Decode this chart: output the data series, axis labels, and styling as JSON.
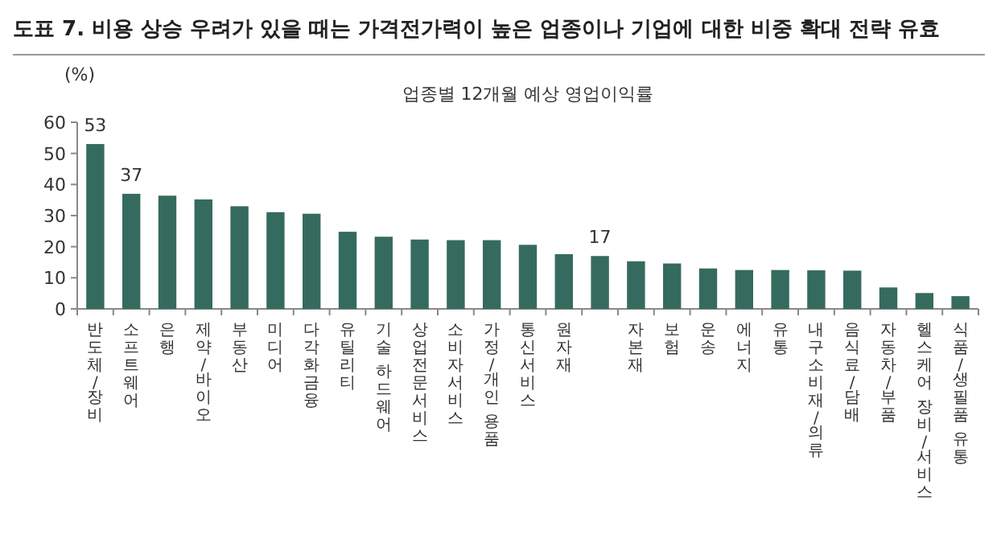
{
  "chart_data": {
    "type": "bar",
    "title": "도표 7. 비용 상승 우려가 있을 때는 가격전가력이 높은 업종이나 기업에 대한 비중 확대 전략 유효",
    "subtitle": "업종별 12개월 예상 영업이익률",
    "ylabel": "(%)",
    "categories": [
      "반도체/장비",
      "소프트웨어",
      "은행",
      "제약/바이오",
      "부동산",
      "미디어",
      "다각화금융",
      "유틸리티",
      "기술 하드웨어",
      "상업전문서비스",
      "소비자서비스",
      "가정/개인 용품",
      "통신서비스",
      "원자재",
      null,
      "자본재",
      "보험",
      "운송",
      "에너지",
      "유통",
      "내구소비재/의류",
      "음식료/담배",
      "자동차/부품",
      "헬스케어 장비/서비스",
      "식품/생필품 유통"
    ],
    "values": [
      53,
      37,
      36.4,
      35.2,
      33,
      31.1,
      30.6,
      24.8,
      23.2,
      22.3,
      22.1,
      22.1,
      20.6,
      17.6,
      17,
      15.3,
      14.6,
      13,
      12.5,
      12.5,
      12.4,
      12.3,
      6.9,
      5.1,
      4.1
    ],
    "value_labels": [
      "53",
      "37",
      null,
      null,
      null,
      null,
      null,
      null,
      null,
      null,
      null,
      null,
      null,
      null,
      "17",
      null,
      null,
      null,
      null,
      null,
      null,
      null,
      null,
      null,
      null
    ],
    "color": "#356b5e",
    "ylim": [
      0,
      60
    ],
    "yticks": [
      0,
      10,
      20,
      30,
      40,
      50,
      60
    ]
  }
}
